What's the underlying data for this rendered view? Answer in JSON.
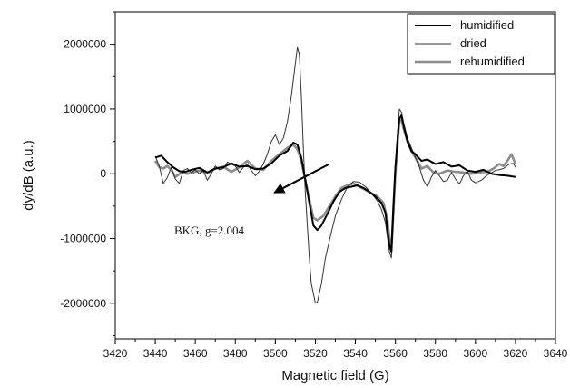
{
  "chart_data": {
    "type": "line",
    "xlabel": "Magnetic field (G)",
    "ylabel": "dy/dB (a.u.)",
    "xlim": [
      3420,
      3640
    ],
    "ylim": [
      -2550000,
      2500000
    ],
    "xticks": [
      3420,
      3440,
      3460,
      3480,
      3500,
      3520,
      3540,
      3560,
      3580,
      3600,
      3620,
      3640
    ],
    "yticks": [
      -2000000,
      -1000000,
      0,
      1000000,
      2000000
    ],
    "ytick_labels": [
      "-2000000",
      "-1000000",
      "0",
      "1000000",
      "2000000"
    ],
    "grid": false,
    "legend_position": "top-right",
    "annotation": {
      "text": "BKG, g=2.004",
      "arrow_from": [
        3527,
        150000
      ],
      "arrow_to": [
        3499,
        -300000
      ]
    },
    "series": [
      {
        "name": "humidified",
        "color": "#000000",
        "points": [
          [
            3440,
            250000
          ],
          [
            3443,
            280000
          ],
          [
            3446,
            180000
          ],
          [
            3449,
            100000
          ],
          [
            3452,
            40000
          ],
          [
            3455,
            30000
          ],
          [
            3458,
            60000
          ],
          [
            3462,
            90000
          ],
          [
            3466,
            20000
          ],
          [
            3470,
            80000
          ],
          [
            3474,
            100000
          ],
          [
            3478,
            160000
          ],
          [
            3482,
            110000
          ],
          [
            3486,
            120000
          ],
          [
            3490,
            70000
          ],
          [
            3494,
            80000
          ],
          [
            3498,
            160000
          ],
          [
            3502,
            280000
          ],
          [
            3506,
            350000
          ],
          [
            3509,
            480000
          ],
          [
            3511,
            450000
          ],
          [
            3513,
            250000
          ],
          [
            3515,
            -100000
          ],
          [
            3517,
            -450000
          ],
          [
            3519,
            -800000
          ],
          [
            3521,
            -870000
          ],
          [
            3523,
            -800000
          ],
          [
            3526,
            -620000
          ],
          [
            3529,
            -430000
          ],
          [
            3532,
            -280000
          ],
          [
            3535,
            -220000
          ],
          [
            3538,
            -200000
          ],
          [
            3541,
            -180000
          ],
          [
            3544,
            -220000
          ],
          [
            3547,
            -280000
          ],
          [
            3550,
            -350000
          ],
          [
            3553,
            -450000
          ],
          [
            3555,
            -600000
          ],
          [
            3557,
            -1100000
          ],
          [
            3558,
            -1200000
          ],
          [
            3559,
            -500000
          ],
          [
            3560,
            100000
          ],
          [
            3561,
            500000
          ],
          [
            3562,
            850000
          ],
          [
            3563,
            900000
          ],
          [
            3564,
            750000
          ],
          [
            3566,
            500000
          ],
          [
            3568,
            350000
          ],
          [
            3570,
            300000
          ],
          [
            3573,
            200000
          ],
          [
            3576,
            220000
          ],
          [
            3580,
            150000
          ],
          [
            3584,
            180000
          ],
          [
            3588,
            110000
          ],
          [
            3592,
            130000
          ],
          [
            3596,
            50000
          ],
          [
            3600,
            30000
          ],
          [
            3604,
            60000
          ],
          [
            3608,
            0
          ],
          [
            3612,
            -20000
          ],
          [
            3616,
            -30000
          ],
          [
            3620,
            -50000
          ]
        ]
      },
      {
        "name": "dried",
        "color": "#333333",
        "points": [
          [
            3440,
            270000
          ],
          [
            3442,
            120000
          ],
          [
            3444,
            -150000
          ],
          [
            3446,
            -60000
          ],
          [
            3448,
            100000
          ],
          [
            3450,
            -80000
          ],
          [
            3452,
            -150000
          ],
          [
            3454,
            50000
          ],
          [
            3456,
            80000
          ],
          [
            3458,
            20000
          ],
          [
            3460,
            60000
          ],
          [
            3462,
            0
          ],
          [
            3464,
            50000
          ],
          [
            3466,
            -100000
          ],
          [
            3468,
            0
          ],
          [
            3470,
            120000
          ],
          [
            3472,
            60000
          ],
          [
            3474,
            80000
          ],
          [
            3476,
            180000
          ],
          [
            3478,
            150000
          ],
          [
            3480,
            120000
          ],
          [
            3482,
            20000
          ],
          [
            3484,
            100000
          ],
          [
            3486,
            150000
          ],
          [
            3488,
            50000
          ],
          [
            3490,
            -30000
          ],
          [
            3492,
            40000
          ],
          [
            3494,
            150000
          ],
          [
            3496,
            300000
          ],
          [
            3498,
            500000
          ],
          [
            3500,
            600000
          ],
          [
            3502,
            450000
          ],
          [
            3504,
            550000
          ],
          [
            3506,
            800000
          ],
          [
            3508,
            1200000
          ],
          [
            3510,
            1700000
          ],
          [
            3511,
            1950000
          ],
          [
            3512,
            1850000
          ],
          [
            3513,
            1200000
          ],
          [
            3514,
            400000
          ],
          [
            3515,
            -300000
          ],
          [
            3516,
            -800000
          ],
          [
            3517,
            -1300000
          ],
          [
            3518,
            -1700000
          ],
          [
            3520,
            -2000000
          ],
          [
            3521,
            -1980000
          ],
          [
            3523,
            -1700000
          ],
          [
            3525,
            -1300000
          ],
          [
            3528,
            -900000
          ],
          [
            3530,
            -650000
          ],
          [
            3533,
            -400000
          ],
          [
            3536,
            -200000
          ],
          [
            3539,
            -120000
          ],
          [
            3542,
            -130000
          ],
          [
            3545,
            -200000
          ],
          [
            3548,
            -300000
          ],
          [
            3551,
            -420000
          ],
          [
            3553,
            -550000
          ],
          [
            3555,
            -750000
          ],
          [
            3557,
            -1200000
          ],
          [
            3558,
            -1300000
          ],
          [
            3559,
            -700000
          ],
          [
            3560,
            0
          ],
          [
            3561,
            600000
          ],
          [
            3562,
            1000000
          ],
          [
            3563,
            950000
          ],
          [
            3564,
            800000
          ],
          [
            3566,
            550000
          ],
          [
            3568,
            400000
          ],
          [
            3570,
            250000
          ],
          [
            3572,
            100000
          ],
          [
            3574,
            -100000
          ],
          [
            3576,
            -200000
          ],
          [
            3578,
            -50000
          ],
          [
            3580,
            50000
          ],
          [
            3582,
            -30000
          ],
          [
            3584,
            -120000
          ],
          [
            3586,
            -100000
          ],
          [
            3588,
            20000
          ],
          [
            3590,
            -80000
          ],
          [
            3592,
            -160000
          ],
          [
            3594,
            -30000
          ],
          [
            3596,
            40000
          ],
          [
            3598,
            -100000
          ],
          [
            3600,
            -140000
          ],
          [
            3603,
            -100000
          ],
          [
            3606,
            -20000
          ],
          [
            3610,
            50000
          ],
          [
            3614,
            80000
          ],
          [
            3617,
            150000
          ],
          [
            3619,
            160000
          ],
          [
            3620,
            100000
          ]
        ]
      },
      {
        "name": "rehumidified",
        "color": "#8c8c8c",
        "points": [
          [
            3440,
            200000
          ],
          [
            3442,
            100000
          ],
          [
            3444,
            80000
          ],
          [
            3446,
            120000
          ],
          [
            3448,
            60000
          ],
          [
            3450,
            -50000
          ],
          [
            3453,
            20000
          ],
          [
            3456,
            0
          ],
          [
            3459,
            20000
          ],
          [
            3462,
            50000
          ],
          [
            3466,
            10000
          ],
          [
            3470,
            80000
          ],
          [
            3474,
            110000
          ],
          [
            3478,
            30000
          ],
          [
            3482,
            100000
          ],
          [
            3486,
            200000
          ],
          [
            3490,
            80000
          ],
          [
            3494,
            60000
          ],
          [
            3498,
            200000
          ],
          [
            3502,
            300000
          ],
          [
            3506,
            400000
          ],
          [
            3509,
            450000
          ],
          [
            3511,
            380000
          ],
          [
            3513,
            200000
          ],
          [
            3515,
            -100000
          ],
          [
            3517,
            -400000
          ],
          [
            3519,
            -680000
          ],
          [
            3521,
            -720000
          ],
          [
            3524,
            -650000
          ],
          [
            3527,
            -500000
          ],
          [
            3530,
            -350000
          ],
          [
            3533,
            -220000
          ],
          [
            3536,
            -180000
          ],
          [
            3539,
            -150000
          ],
          [
            3542,
            -200000
          ],
          [
            3545,
            -250000
          ],
          [
            3548,
            -300000
          ],
          [
            3551,
            -350000
          ],
          [
            3554,
            -450000
          ],
          [
            3556,
            -700000
          ],
          [
            3557,
            -1000000
          ],
          [
            3558,
            -1200000
          ],
          [
            3559,
            -600000
          ],
          [
            3560,
            0
          ],
          [
            3561,
            400000
          ],
          [
            3562,
            850000
          ],
          [
            3563,
            820000
          ],
          [
            3564,
            700000
          ],
          [
            3566,
            500000
          ],
          [
            3568,
            350000
          ],
          [
            3570,
            250000
          ],
          [
            3573,
            80000
          ],
          [
            3576,
            120000
          ],
          [
            3579,
            20000
          ],
          [
            3582,
            0
          ],
          [
            3586,
            50000
          ],
          [
            3590,
            30000
          ],
          [
            3594,
            20000
          ],
          [
            3598,
            0
          ],
          [
            3602,
            20000
          ],
          [
            3606,
            30000
          ],
          [
            3609,
            80000
          ],
          [
            3612,
            150000
          ],
          [
            3614,
            120000
          ],
          [
            3616,
            200000
          ],
          [
            3618,
            300000
          ],
          [
            3620,
            150000
          ]
        ]
      }
    ]
  }
}
